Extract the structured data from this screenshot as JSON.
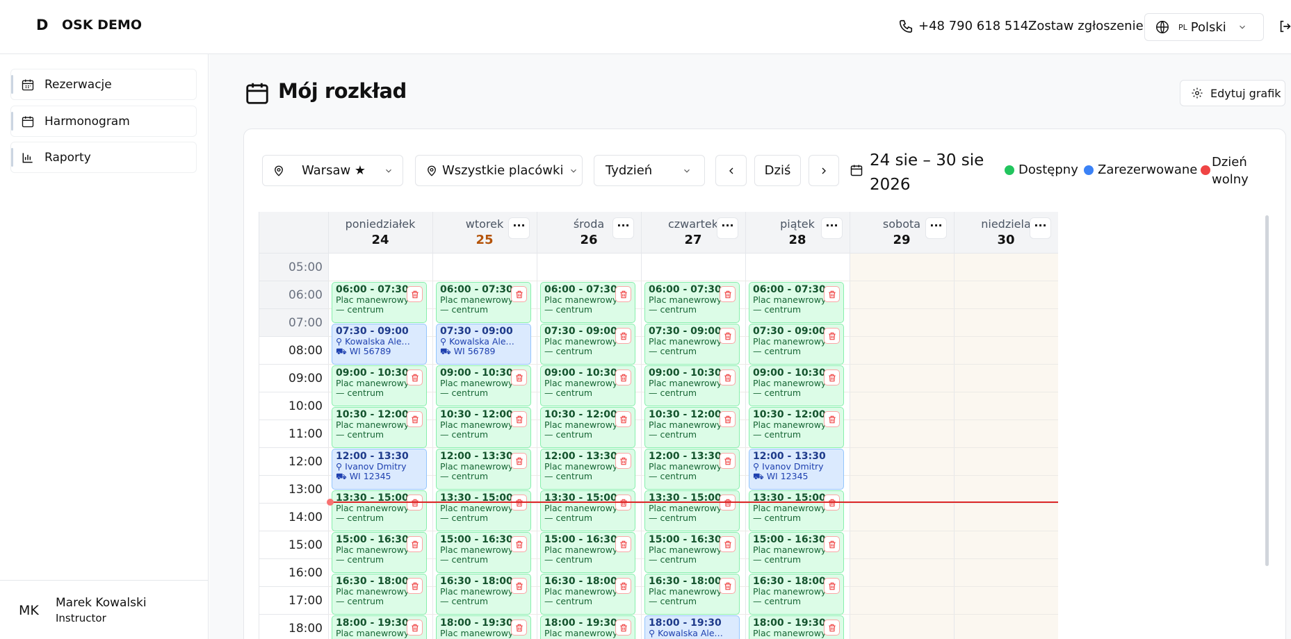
{
  "header": {
    "logo": "D",
    "brand": "OSK DEMO",
    "phone": "+48 790 618 514",
    "cta": "Zostaw zgłoszenie",
    "language_code": "PL",
    "language": "Polski"
  },
  "sidebar": {
    "nav": [
      "Rezerwacje",
      "Harmonogram",
      "Raporty"
    ],
    "user": {
      "initials": "MK",
      "name": "Marek Kowalski",
      "role": "Instructor"
    }
  },
  "page": {
    "title": "Mój rozkład",
    "edit_button": "Edytuj grafik"
  },
  "filters": {
    "location": "Warsaw ★",
    "branches": "Wszystkie placówki",
    "view": "Tydzień",
    "today": "Dziś",
    "range_line1": "24 sie – 30 sie",
    "range_line2": "2026"
  },
  "legend": [
    "Dostępny",
    "Zarezerwowane",
    "Dzień",
    "wolny"
  ],
  "calendar": {
    "hours": [
      "05:00",
      "06:00",
      "07:00",
      "08:00",
      "09:00",
      "10:00",
      "11:00",
      "12:00",
      "13:00",
      "14:00",
      "15:00",
      "16:00",
      "17:00",
      "18:00"
    ],
    "days": [
      {
        "name": "poniedziałek",
        "date": "24",
        "events": [
          {
            "time": "06:00 - 07:30",
            "status": "available",
            "lines": [
              "Plac manewrowy",
              "— centrum"
            ]
          },
          {
            "time": "07:30 - 09:00",
            "status": "booked",
            "lines": [
              "Kowalska Alexan…",
              "WI 56789"
            ]
          },
          {
            "time": "09:00 - 10:30",
            "status": "available",
            "lines": [
              "Plac manewrowy",
              "— centrum"
            ]
          },
          {
            "time": "10:30 - 12:00",
            "status": "available",
            "lines": [
              "Plac manewrowy",
              "— centrum"
            ]
          },
          {
            "time": "12:00 - 13:30",
            "status": "booked",
            "lines": [
              "Ivanov Dmitry",
              "WI 12345"
            ]
          },
          {
            "time": "13:30 - 15:00",
            "status": "available",
            "lines": [
              "Plac manewrowy",
              "— centrum"
            ]
          },
          {
            "time": "15:00 - 16:30",
            "status": "available",
            "lines": [
              "Plac manewrowy",
              "— centrum"
            ]
          },
          {
            "time": "16:30 - 18:00",
            "status": "available",
            "lines": [
              "Plac manewrowy",
              "— centrum"
            ]
          },
          {
            "time": "18:00 - 19:30",
            "status": "available",
            "lines": [
              "Plac manewrowy"
            ]
          }
        ]
      },
      {
        "name": "wtorek",
        "date": "25",
        "current": true,
        "events": [
          {
            "time": "06:00 - 07:30",
            "status": "available",
            "lines": [
              "Plac manewrowy",
              "— centrum"
            ]
          },
          {
            "time": "07:30 - 09:00",
            "status": "booked",
            "lines": [
              "Kowalska Alexan…",
              "WI 56789"
            ]
          },
          {
            "time": "09:00 - 10:30",
            "status": "available",
            "lines": [
              "Plac manewrowy",
              "— centrum"
            ]
          },
          {
            "time": "10:30 - 12:00",
            "status": "available",
            "lines": [
              "Plac manewrowy",
              "— centrum"
            ]
          },
          {
            "time": "12:00 - 13:30",
            "status": "available",
            "lines": [
              "Plac manewrowy",
              "— centrum"
            ]
          },
          {
            "time": "13:30 - 15:00",
            "status": "available",
            "lines": [
              "Plac manewrowy",
              "— centrum"
            ]
          },
          {
            "time": "15:00 - 16:30",
            "status": "available",
            "lines": [
              "Plac manewrowy",
              "— centrum"
            ]
          },
          {
            "time": "16:30 - 18:00",
            "status": "available",
            "lines": [
              "Plac manewrowy",
              "— centrum"
            ]
          },
          {
            "time": "18:00 - 19:30",
            "status": "available",
            "lines": [
              "Plac manewrowy"
            ]
          }
        ]
      },
      {
        "name": "środa",
        "date": "26",
        "events": [
          {
            "time": "06:00 - 07:30",
            "status": "available",
            "lines": [
              "Plac manewrowy",
              "— centrum"
            ]
          },
          {
            "time": "07:30 - 09:00",
            "status": "available",
            "lines": [
              "Plac manewrowy",
              "— centrum"
            ]
          },
          {
            "time": "09:00 - 10:30",
            "status": "available",
            "lines": [
              "Plac manewrowy",
              "— centrum"
            ]
          },
          {
            "time": "10:30 - 12:00",
            "status": "available",
            "lines": [
              "Plac manewrowy",
              "— centrum"
            ]
          },
          {
            "time": "12:00 - 13:30",
            "status": "available",
            "lines": [
              "Plac manewrowy",
              "— centrum"
            ]
          },
          {
            "time": "13:30 - 15:00",
            "status": "available",
            "lines": [
              "Plac manewrowy",
              "— centrum"
            ]
          },
          {
            "time": "15:00 - 16:30",
            "status": "available",
            "lines": [
              "Plac manewrowy",
              "— centrum"
            ]
          },
          {
            "time": "16:30 - 18:00",
            "status": "available",
            "lines": [
              "Plac manewrowy",
              "— centrum"
            ]
          },
          {
            "time": "18:00 - 19:30",
            "status": "available",
            "lines": [
              "Plac manewrowy"
            ]
          }
        ]
      },
      {
        "name": "czwartek",
        "date": "27",
        "events": [
          {
            "time": "06:00 - 07:30",
            "status": "available",
            "lines": [
              "Plac manewrowy",
              "— centrum"
            ]
          },
          {
            "time": "07:30 - 09:00",
            "status": "available",
            "lines": [
              "Plac manewrowy",
              "— centrum"
            ]
          },
          {
            "time": "09:00 - 10:30",
            "status": "available",
            "lines": [
              "Plac manewrowy",
              "— centrum"
            ]
          },
          {
            "time": "10:30 - 12:00",
            "status": "available",
            "lines": [
              "Plac manewrowy",
              "— centrum"
            ]
          },
          {
            "time": "12:00 - 13:30",
            "status": "available",
            "lines": [
              "Plac manewrowy",
              "— centrum"
            ]
          },
          {
            "time": "13:30 - 15:00",
            "status": "available",
            "lines": [
              "Plac manewrowy",
              "— centrum"
            ]
          },
          {
            "time": "15:00 - 16:30",
            "status": "available",
            "lines": [
              "Plac manewrowy",
              "— centrum"
            ]
          },
          {
            "time": "16:30 - 18:00",
            "status": "available",
            "lines": [
              "Plac manewrowy",
              "— centrum"
            ]
          },
          {
            "time": "18:00 - 19:30",
            "status": "booked",
            "lines": [
              "Kowalska Alexan…"
            ]
          }
        ]
      },
      {
        "name": "piątek",
        "date": "28",
        "events": [
          {
            "time": "06:00 - 07:30",
            "status": "available",
            "lines": [
              "Plac manewrowy",
              "— centrum"
            ]
          },
          {
            "time": "07:30 - 09:00",
            "status": "available",
            "lines": [
              "Plac manewrowy",
              "— centrum"
            ]
          },
          {
            "time": "09:00 - 10:30",
            "status": "available",
            "lines": [
              "Plac manewrowy",
              "— centrum"
            ]
          },
          {
            "time": "10:30 - 12:00",
            "status": "available",
            "lines": [
              "Plac manewrowy",
              "— centrum"
            ]
          },
          {
            "time": "12:00 - 13:30",
            "status": "booked",
            "lines": [
              "Ivanov Dmitry",
              "WI 12345"
            ]
          },
          {
            "time": "13:30 - 15:00",
            "status": "available",
            "lines": [
              "Plac manewrowy",
              "— centrum"
            ]
          },
          {
            "time": "15:00 - 16:30",
            "status": "available",
            "lines": [
              "Plac manewrowy",
              "— centrum"
            ]
          },
          {
            "time": "16:30 - 18:00",
            "status": "available",
            "lines": [
              "Plac manewrowy",
              "— centrum"
            ]
          },
          {
            "time": "18:00 - 19:30",
            "status": "available",
            "lines": [
              "Plac manewrowy"
            ]
          }
        ]
      },
      {
        "name": "sobota",
        "date": "29",
        "events": []
      },
      {
        "name": "niedziela",
        "date": "30",
        "events": []
      }
    ]
  }
}
